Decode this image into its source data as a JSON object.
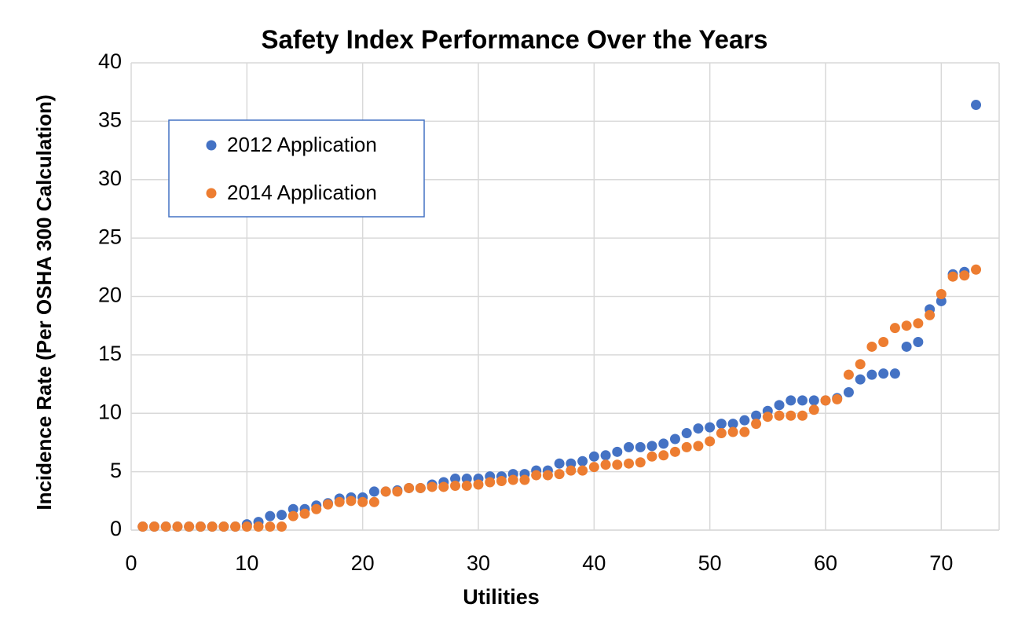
{
  "chart_data": {
    "type": "scatter",
    "title": "Safety Index Performance Over the Years",
    "xlabel": "Utilities",
    "ylabel": "Incidence Rate (Per OSHA 300 Calculation)",
    "x": [
      1,
      2,
      3,
      4,
      5,
      6,
      7,
      8,
      9,
      10,
      11,
      12,
      13,
      14,
      15,
      16,
      17,
      18,
      19,
      20,
      21,
      22,
      23,
      24,
      25,
      26,
      27,
      28,
      29,
      30,
      31,
      32,
      33,
      34,
      35,
      36,
      37,
      38,
      39,
      40,
      41,
      42,
      43,
      44,
      45,
      46,
      47,
      48,
      49,
      50,
      51,
      52,
      53,
      54,
      55,
      56,
      57,
      58,
      59,
      60,
      61,
      62,
      63,
      64,
      65,
      66,
      67,
      68,
      69,
      70,
      71,
      72,
      73
    ],
    "series": [
      {
        "name": "2012 Application",
        "color": "#4472c4",
        "values": [
          0.3,
          0.3,
          0.3,
          0.3,
          0.3,
          0.3,
          0.3,
          0.3,
          0.3,
          0.5,
          0.7,
          1.2,
          1.3,
          1.8,
          1.8,
          2.1,
          2.3,
          2.7,
          2.8,
          2.8,
          3.3,
          3.3,
          3.4,
          3.6,
          3.6,
          3.9,
          4.1,
          4.4,
          4.4,
          4.4,
          4.6,
          4.6,
          4.8,
          4.8,
          5.1,
          5.1,
          5.7,
          5.7,
          5.9,
          6.3,
          6.4,
          6.7,
          7.1,
          7.1,
          7.2,
          7.4,
          7.8,
          8.3,
          8.7,
          8.8,
          9.1,
          9.1,
          9.4,
          9.8,
          10.2,
          10.7,
          11.1,
          11.1,
          11.1,
          11.1,
          11.3,
          11.8,
          12.9,
          13.3,
          13.4,
          13.4,
          15.7,
          16.1,
          18.9,
          19.6,
          21.9,
          22.1,
          36.4
        ]
      },
      {
        "name": "2014 Application",
        "color": "#ed7d31",
        "values": [
          0.3,
          0.3,
          0.3,
          0.3,
          0.3,
          0.3,
          0.3,
          0.3,
          0.3,
          0.3,
          0.3,
          0.3,
          0.3,
          1.2,
          1.4,
          1.8,
          2.2,
          2.4,
          2.5,
          2.4,
          2.4,
          3.3,
          3.3,
          3.6,
          3.6,
          3.7,
          3.7,
          3.8,
          3.8,
          3.9,
          4.1,
          4.2,
          4.3,
          4.3,
          4.7,
          4.7,
          4.8,
          5.1,
          5.1,
          5.4,
          5.6,
          5.6,
          5.7,
          5.8,
          6.3,
          6.4,
          6.7,
          7.1,
          7.2,
          7.6,
          8.3,
          8.4,
          8.4,
          9.1,
          9.7,
          9.8,
          9.8,
          9.8,
          10.3,
          11.1,
          11.2,
          13.3,
          14.2,
          15.7,
          16.1,
          17.3,
          17.5,
          17.7,
          18.4,
          20.2,
          21.7,
          21.8,
          22.3
        ]
      }
    ],
    "xlim": [
      0,
      75
    ],
    "xticks": [
      0,
      10,
      20,
      30,
      40,
      50,
      60,
      70
    ],
    "ylim": [
      0,
      40
    ],
    "yticks": [
      0,
      5,
      10,
      15,
      20,
      25,
      30,
      35,
      40
    ],
    "grid": true,
    "legend": "upper left"
  }
}
